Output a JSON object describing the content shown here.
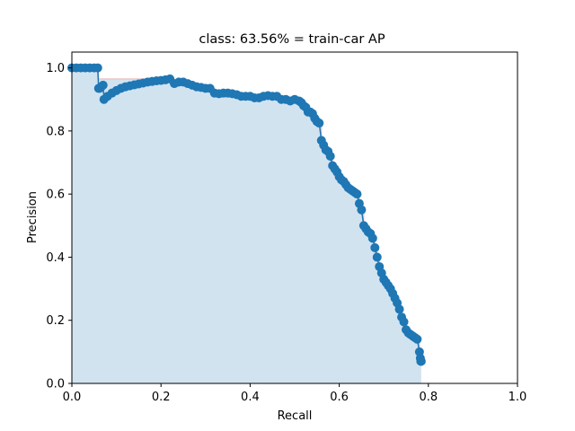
{
  "chart_data": {
    "type": "scatter",
    "title": "class: 63.56% = train-car AP",
    "xlabel": "Recall",
    "ylabel": "Precision",
    "xlim": [
      0.0,
      1.0
    ],
    "ylim": [
      0.0,
      1.05
    ],
    "xticks": [
      "0.0",
      "0.2",
      "0.4",
      "0.6",
      "0.8",
      "1.0"
    ],
    "xtick_values": [
      0.0,
      0.2,
      0.4,
      0.6,
      0.8,
      1.0
    ],
    "yticks": [
      "0.0",
      "0.2",
      "0.4",
      "0.6",
      "0.8",
      "1.0"
    ],
    "ytick_values": [
      0.0,
      0.2,
      0.4,
      0.6,
      0.8,
      1.0
    ],
    "grid": false,
    "legend": "none",
    "colors": {
      "points": "#1f77b4",
      "fill": "#a6c8e2",
      "fill_edge": "#e8b8b8"
    },
    "x": [
      0.0,
      0.01,
      0.02,
      0.03,
      0.04,
      0.05,
      0.058,
      0.06,
      0.062,
      0.066,
      0.07,
      0.072,
      0.08,
      0.09,
      0.1,
      0.11,
      0.12,
      0.13,
      0.14,
      0.15,
      0.16,
      0.17,
      0.18,
      0.19,
      0.2,
      0.21,
      0.22,
      0.23,
      0.24,
      0.25,
      0.26,
      0.27,
      0.28,
      0.29,
      0.3,
      0.31,
      0.32,
      0.33,
      0.34,
      0.35,
      0.36,
      0.37,
      0.38,
      0.39,
      0.4,
      0.41,
      0.42,
      0.43,
      0.44,
      0.45,
      0.46,
      0.47,
      0.48,
      0.49,
      0.5,
      0.51,
      0.515,
      0.52,
      0.525,
      0.53,
      0.535,
      0.54,
      0.545,
      0.55,
      0.555,
      0.56,
      0.565,
      0.57,
      0.575,
      0.58,
      0.585,
      0.59,
      0.595,
      0.6,
      0.605,
      0.61,
      0.615,
      0.62,
      0.625,
      0.63,
      0.635,
      0.64,
      0.645,
      0.65,
      0.655,
      0.66,
      0.665,
      0.67,
      0.675,
      0.68,
      0.685,
      0.69,
      0.695,
      0.7,
      0.705,
      0.71,
      0.715,
      0.72,
      0.725,
      0.73,
      0.735,
      0.74,
      0.745,
      0.75,
      0.755,
      0.76,
      0.765,
      0.77,
      0.775,
      0.78,
      0.782,
      0.783,
      0.784
    ],
    "y": [
      1.0,
      1.0,
      1.0,
      1.0,
      1.0,
      1.0,
      1.0,
      0.935,
      0.935,
      0.94,
      0.945,
      0.9,
      0.91,
      0.92,
      0.928,
      0.935,
      0.94,
      0.943,
      0.946,
      0.949,
      0.952,
      0.955,
      0.957,
      0.959,
      0.96,
      0.962,
      0.965,
      0.95,
      0.955,
      0.955,
      0.95,
      0.945,
      0.94,
      0.938,
      0.935,
      0.935,
      0.92,
      0.918,
      0.92,
      0.92,
      0.918,
      0.915,
      0.91,
      0.91,
      0.91,
      0.905,
      0.905,
      0.91,
      0.912,
      0.91,
      0.91,
      0.9,
      0.9,
      0.895,
      0.9,
      0.895,
      0.89,
      0.88,
      0.875,
      0.86,
      0.86,
      0.855,
      0.84,
      0.83,
      0.825,
      0.77,
      0.755,
      0.74,
      0.735,
      0.72,
      0.69,
      0.68,
      0.67,
      0.655,
      0.645,
      0.64,
      0.63,
      0.62,
      0.615,
      0.61,
      0.605,
      0.6,
      0.57,
      0.55,
      0.5,
      0.49,
      0.48,
      0.475,
      0.46,
      0.43,
      0.4,
      0.37,
      0.35,
      0.33,
      0.32,
      0.31,
      0.3,
      0.285,
      0.27,
      0.255,
      0.235,
      0.21,
      0.195,
      0.17,
      0.16,
      0.155,
      0.15,
      0.145,
      0.14,
      0.1,
      0.08,
      0.07,
      0.07
    ]
  }
}
